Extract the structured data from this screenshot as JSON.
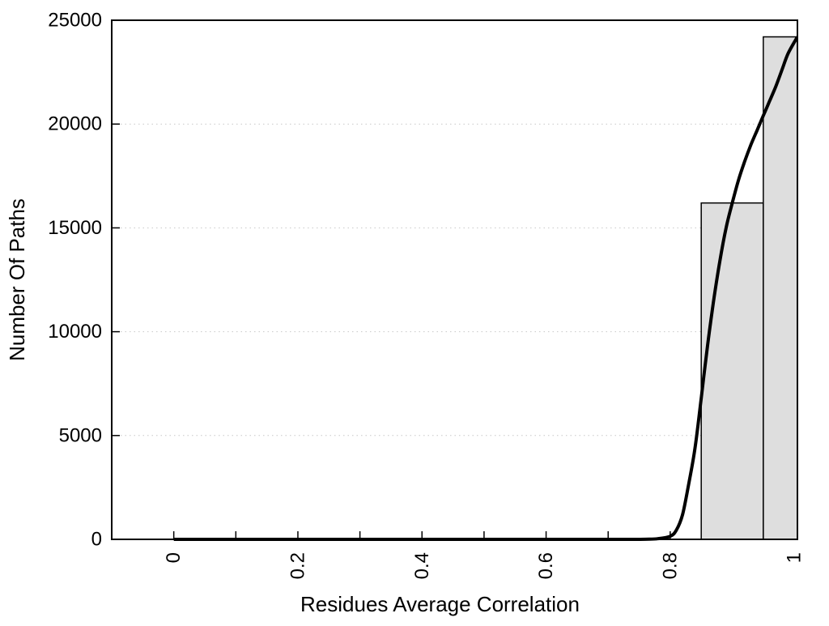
{
  "figure": {
    "background": "#ffffff",
    "text_color": "#000000"
  },
  "chart_data": {
    "type": "bar",
    "subtype": "histogram-with-smooth-curve",
    "title": "",
    "xlabel": "Residues Average Correlation",
    "ylabel": "Number Of Paths",
    "xlim": [
      -0.1,
      1.005
    ],
    "ylim": [
      0,
      25000
    ],
    "grid": "horizontal-dotted",
    "grid_color": "#c8c8c8",
    "legend": "none",
    "x_major_ticks": [
      0,
      0.2,
      0.4,
      0.6,
      0.8,
      1.0
    ],
    "x_major_tick_labels": [
      "0",
      "0.2",
      "0.4",
      "0.6",
      "0.8",
      "1"
    ],
    "x_minor_ticks": [
      0.1,
      0.3,
      0.5,
      0.7,
      0.9
    ],
    "y_ticks": [
      0,
      5000,
      10000,
      15000,
      20000,
      25000
    ],
    "y_tick_labels": [
      "0",
      "5000",
      "10000",
      "15000",
      "20000",
      "25000"
    ],
    "bars": [
      {
        "x0": 0.85,
        "x1": 0.95,
        "center": 0.9,
        "count": 16200
      },
      {
        "x0": 0.95,
        "x1": 1.05,
        "center": 1.0,
        "count": 24200
      }
    ],
    "bar_fill": "#dedede",
    "bar_stroke": "#000000",
    "curve": {
      "name": "smoothed-distribution-curve",
      "color": "#000000",
      "width": 4,
      "points": [
        [
          0.0,
          0
        ],
        [
          0.05,
          0
        ],
        [
          0.1,
          0
        ],
        [
          0.15,
          0
        ],
        [
          0.2,
          0
        ],
        [
          0.25,
          0
        ],
        [
          0.3,
          0
        ],
        [
          0.35,
          0
        ],
        [
          0.4,
          0
        ],
        [
          0.45,
          0
        ],
        [
          0.5,
          0
        ],
        [
          0.55,
          0
        ],
        [
          0.6,
          0
        ],
        [
          0.65,
          0
        ],
        [
          0.7,
          0
        ],
        [
          0.72,
          0
        ],
        [
          0.74,
          0
        ],
        [
          0.76,
          5
        ],
        [
          0.78,
          30
        ],
        [
          0.8,
          150
        ],
        [
          0.81,
          450
        ],
        [
          0.82,
          1200
        ],
        [
          0.83,
          2700
        ],
        [
          0.84,
          4400
        ],
        [
          0.85,
          6800
        ],
        [
          0.86,
          9300
        ],
        [
          0.87,
          11500
        ],
        [
          0.88,
          13400
        ],
        [
          0.89,
          15000
        ],
        [
          0.9,
          16200
        ],
        [
          0.91,
          17300
        ],
        [
          0.92,
          18200
        ],
        [
          0.93,
          19000
        ],
        [
          0.94,
          19700
        ],
        [
          0.95,
          20400
        ],
        [
          0.96,
          21100
        ],
        [
          0.97,
          21800
        ],
        [
          0.98,
          22600
        ],
        [
          0.99,
          23400
        ],
        [
          1.005,
          24200
        ]
      ]
    }
  }
}
